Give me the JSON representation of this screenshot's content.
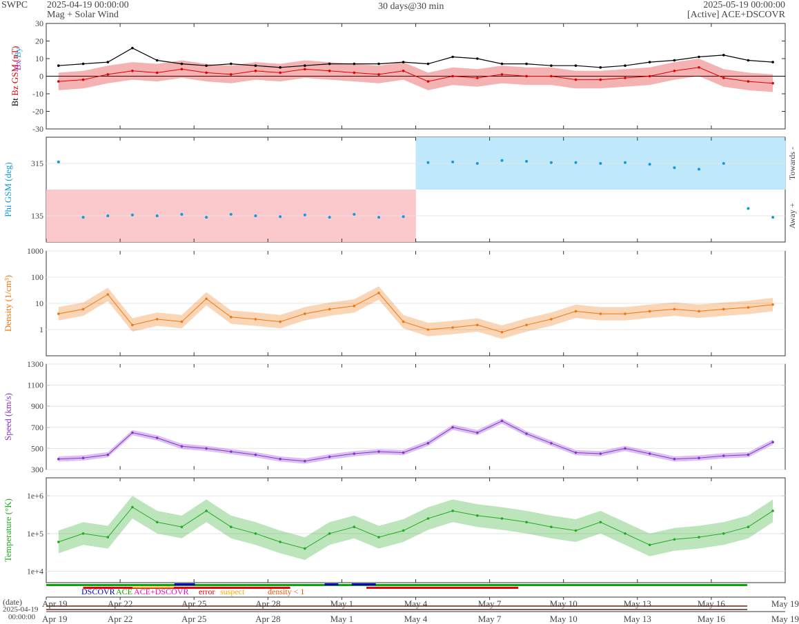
{
  "header": {
    "brand": "SWPC",
    "start": "2025-04-19 00:00:00",
    "product": "Mag + Solar Wind",
    "span": "30 days@30 min",
    "end": "2025-05-19 00:00:00",
    "source": "[Active] ACE+DSCOVR"
  },
  "colors": {
    "bt": "#000000",
    "bz": "#dd0000",
    "bx": "#9933cc",
    "by": "#22aaee",
    "phi": "#1199dd",
    "phi_toward": "#bfe9fb",
    "phi_away": "#fbc8cc",
    "density": "#ee7711",
    "speed": "#8833cc",
    "temperature": "#22aa22",
    "dscovr": "#0000cc",
    "ace": "#00aa00",
    "ace_dscovr": "#ff00cc",
    "error": "#ee0000",
    "suspect": "#ffaa00",
    "density_low": "#ee5500"
  },
  "chart_data": [
    {
      "type": "line",
      "id": "mag",
      "ylabel_parts": [
        "Bt",
        "Bz GSM (nT)",
        "Bx",
        "By"
      ],
      "ylim": [
        -30,
        30
      ],
      "yticks": [
        -30,
        -20,
        -10,
        0,
        10,
        20,
        30
      ],
      "series": [
        {
          "name": "Bt",
          "x": [
            0,
            1,
            2,
            3,
            4,
            5,
            6,
            7,
            8,
            9,
            10,
            11,
            12,
            13,
            14,
            15,
            16,
            17,
            18,
            19,
            20,
            21,
            22,
            23,
            24,
            25,
            26,
            27,
            28,
            29
          ],
          "values": [
            6,
            7,
            8,
            16,
            9,
            7,
            6,
            7,
            6,
            5,
            6,
            7,
            7,
            7,
            8,
            7,
            11,
            10,
            7,
            7,
            6,
            6,
            5,
            6,
            8,
            9,
            11,
            12,
            9,
            8
          ]
        },
        {
          "name": "Bz",
          "x": [
            0,
            1,
            2,
            3,
            4,
            5,
            6,
            7,
            8,
            9,
            10,
            11,
            12,
            13,
            14,
            15,
            16,
            17,
            18,
            19,
            20,
            21,
            22,
            23,
            24,
            25,
            26,
            27,
            28,
            29
          ],
          "values": [
            -3,
            -2,
            1,
            3,
            2,
            4,
            2,
            1,
            3,
            2,
            4,
            3,
            2,
            1,
            3,
            -3,
            0,
            -1,
            1,
            0,
            0,
            -2,
            -2,
            -1,
            0,
            3,
            5,
            -1,
            -3,
            -4
          ]
        }
      ]
    },
    {
      "type": "scatter",
      "id": "phi",
      "ylabel": "Phi GSM (deg)",
      "yticks": [
        135,
        315
      ],
      "ylim": [
        45,
        405
      ],
      "right_labels": [
        "Towards -",
        "Away +"
      ],
      "sectors": [
        "away",
        "away",
        "away",
        "away",
        "away",
        "away",
        "away",
        "away",
        "away",
        "away",
        "away",
        "away",
        "away",
        "away",
        "away",
        "toward",
        "toward",
        "toward",
        "toward",
        "toward",
        "toward",
        "toward",
        "toward",
        "toward",
        "toward",
        "toward",
        "toward",
        "toward",
        "toward",
        "toward"
      ],
      "x": [
        0,
        1,
        2,
        3,
        4,
        5,
        6,
        7,
        8,
        9,
        10,
        11,
        12,
        13,
        14,
        15,
        16,
        17,
        18,
        19,
        20,
        21,
        22,
        23,
        24,
        25,
        26,
        27,
        28,
        29
      ],
      "values": [
        320,
        130,
        135,
        138,
        135,
        140,
        130,
        140,
        135,
        132,
        138,
        130,
        140,
        130,
        132,
        318,
        320,
        315,
        325,
        322,
        318,
        318,
        315,
        318,
        312,
        300,
        295,
        315,
        160,
        130
      ]
    },
    {
      "type": "line",
      "id": "density",
      "scale": "log",
      "ylabel": "Density (1/cm³)",
      "ylim": [
        0.1,
        1000
      ],
      "yticks": [
        1,
        10,
        100,
        1000
      ],
      "x": [
        0,
        1,
        2,
        3,
        4,
        5,
        6,
        7,
        8,
        9,
        10,
        11,
        12,
        13,
        14,
        15,
        16,
        17,
        18,
        19,
        20,
        21,
        22,
        23,
        24,
        25,
        26,
        27,
        28,
        29
      ],
      "values": [
        4,
        6,
        22,
        1.5,
        2.5,
        2,
        15,
        3,
        2.5,
        2,
        4,
        6,
        8,
        25,
        2,
        1,
        1.2,
        1.5,
        0.8,
        1.5,
        2.5,
        5,
        4,
        4,
        5,
        6,
        5,
        6,
        7,
        9
      ]
    },
    {
      "type": "line",
      "id": "speed",
      "ylabel": "Speed (km/s)",
      "ylim": [
        300,
        1300
      ],
      "yticks": [
        300,
        500,
        700,
        900,
        1100,
        1300
      ],
      "x": [
        0,
        1,
        2,
        3,
        4,
        5,
        6,
        7,
        8,
        9,
        10,
        11,
        12,
        13,
        14,
        15,
        16,
        17,
        18,
        19,
        20,
        21,
        22,
        23,
        24,
        25,
        26,
        27,
        28,
        29
      ],
      "values": [
        400,
        410,
        440,
        650,
        600,
        520,
        500,
        470,
        440,
        400,
        380,
        420,
        450,
        470,
        460,
        550,
        700,
        650,
        760,
        640,
        550,
        460,
        450,
        500,
        450,
        400,
        410,
        430,
        440,
        560
      ]
    },
    {
      "type": "line",
      "id": "temperature",
      "scale": "log",
      "ylabel": "Temperature (°K)",
      "ylim": [
        5000,
        3000000
      ],
      "yticks": [
        10000,
        100000,
        1000000
      ],
      "ytick_labels": [
        "1e+4",
        "1e+5",
        "1e+6"
      ],
      "x": [
        0,
        1,
        2,
        3,
        4,
        5,
        6,
        7,
        8,
        9,
        10,
        11,
        12,
        13,
        14,
        15,
        16,
        17,
        18,
        19,
        20,
        21,
        22,
        23,
        24,
        25,
        26,
        27,
        28,
        29
      ],
      "values": [
        60000,
        100000,
        80000,
        500000,
        200000,
        150000,
        400000,
        150000,
        100000,
        60000,
        40000,
        100000,
        150000,
        80000,
        120000,
        250000,
        400000,
        300000,
        250000,
        200000,
        150000,
        120000,
        200000,
        100000,
        50000,
        70000,
        80000,
        100000,
        150000,
        400000
      ]
    }
  ],
  "x_axis": {
    "range_days": [
      0,
      30
    ],
    "tick_days": [
      0,
      3,
      6,
      9,
      12,
      15,
      18,
      21,
      24,
      27,
      30
    ],
    "labels": [
      "Apr 19",
      "Apr 22",
      "Apr 25",
      "Apr 28",
      "May 1",
      "May 4",
      "May 7",
      "May 10",
      "May 13",
      "May 16",
      "May 19"
    ],
    "date_label": "(date)",
    "date_stamp": "2025-04-19",
    "time_stamp": "00:00:00"
  },
  "legend": {
    "dscovr": "DSCOVR",
    "ace": "ACE",
    "ace_dscovr": "ACE+DSCOVR",
    "error": "error",
    "suspect": "suspect",
    "density_low": "density < 1"
  }
}
